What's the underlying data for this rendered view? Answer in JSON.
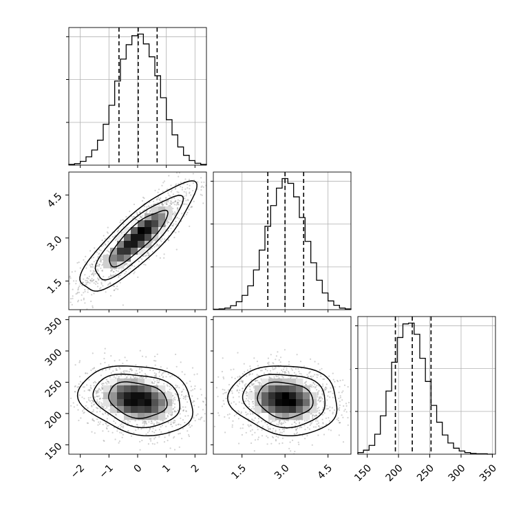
{
  "chart_data": {
    "type": "corner",
    "title": "",
    "grid": true,
    "variables": [
      {
        "label": "",
        "range": [
          -2.4,
          2.4
        ],
        "ticks": [
          -2,
          -1,
          0,
          1,
          2
        ],
        "tick_labels": [
          "−2",
          "−1",
          "0",
          "1",
          "2"
        ],
        "quantiles": [
          -0.65,
          0.02,
          0.68
        ],
        "mean": 0.0,
        "sd": 1.0
      },
      {
        "label": "",
        "range": [
          0.5,
          5.3
        ],
        "ticks": [
          1.5,
          3.0,
          4.5
        ],
        "tick_labels": [
          "1.5",
          "3.0",
          "4.5"
        ],
        "quantiles": [
          2.4,
          3.0,
          3.65
        ],
        "mean": 3.0,
        "sd": 0.95
      },
      {
        "label": "",
        "range": [
          135,
          355
        ],
        "ticks": [
          150,
          200,
          250,
          300,
          350
        ],
        "tick_labels": [
          "150",
          "200",
          "250",
          "300",
          "350"
        ],
        "quantiles": [
          195,
          222,
          252
        ],
        "mean": 222,
        "sd": 28
      }
    ],
    "histograms": [
      {
        "variable": 0,
        "bin_edges": [
          -2.4,
          -2.2,
          -2.0,
          -1.8,
          -1.6,
          -1.4,
          -1.2,
          -1.0,
          -0.8,
          -0.6,
          -0.4,
          -0.2,
          0.0,
          0.2,
          0.4,
          0.6,
          0.8,
          1.0,
          1.2,
          1.4,
          1.6,
          1.8,
          2.0,
          2.2,
          2.4
        ],
        "counts": [
          2,
          4,
          10,
          22,
          40,
          66,
          108,
          158,
          222,
          280,
          318,
          342,
          346,
          320,
          286,
          236,
          178,
          120,
          80,
          48,
          26,
          12,
          5,
          2
        ]
      },
      {
        "variable": 1,
        "bin_edges": [
          0.5,
          0.7,
          0.9,
          1.1,
          1.3,
          1.5,
          1.7,
          1.9,
          2.1,
          2.3,
          2.5,
          2.7,
          2.9,
          3.1,
          3.3,
          3.5,
          3.7,
          3.9,
          4.1,
          4.3,
          4.5,
          4.7,
          4.9,
          5.1,
          5.3
        ],
        "counts": [
          1,
          2,
          4,
          10,
          20,
          36,
          60,
          100,
          150,
          210,
          262,
          306,
          330,
          318,
          284,
          232,
          172,
          118,
          74,
          42,
          22,
          11,
          4,
          2
        ]
      },
      {
        "variable": 2,
        "bin_edges": [
          135,
          144,
          153,
          162,
          171,
          180,
          189,
          198,
          207,
          216,
          225,
          234,
          243,
          252,
          261,
          270,
          279,
          288,
          297,
          306,
          315,
          324,
          333,
          342,
          351
        ],
        "counts": [
          4,
          10,
          22,
          50,
          96,
          158,
          230,
          292,
          326,
          328,
          300,
          240,
          182,
          122,
          80,
          48,
          28,
          15,
          8,
          4,
          2,
          1,
          1,
          0
        ]
      }
    ],
    "pairs": [
      {
        "x": 0,
        "y": 1,
        "correlation": 0.85,
        "contour_levels": [
          0.393,
          0.865,
          1.5
        ]
      },
      {
        "x": 0,
        "y": 2,
        "correlation": -0.2,
        "contour_levels": [
          0.393,
          0.865,
          1.5
        ]
      },
      {
        "x": 1,
        "y": 2,
        "correlation": -0.1,
        "contour_levels": [
          0.393,
          0.865,
          1.5
        ]
      }
    ],
    "colors": {
      "line": "#000000",
      "grid": "#b0b0b0",
      "points": "#999999"
    }
  }
}
